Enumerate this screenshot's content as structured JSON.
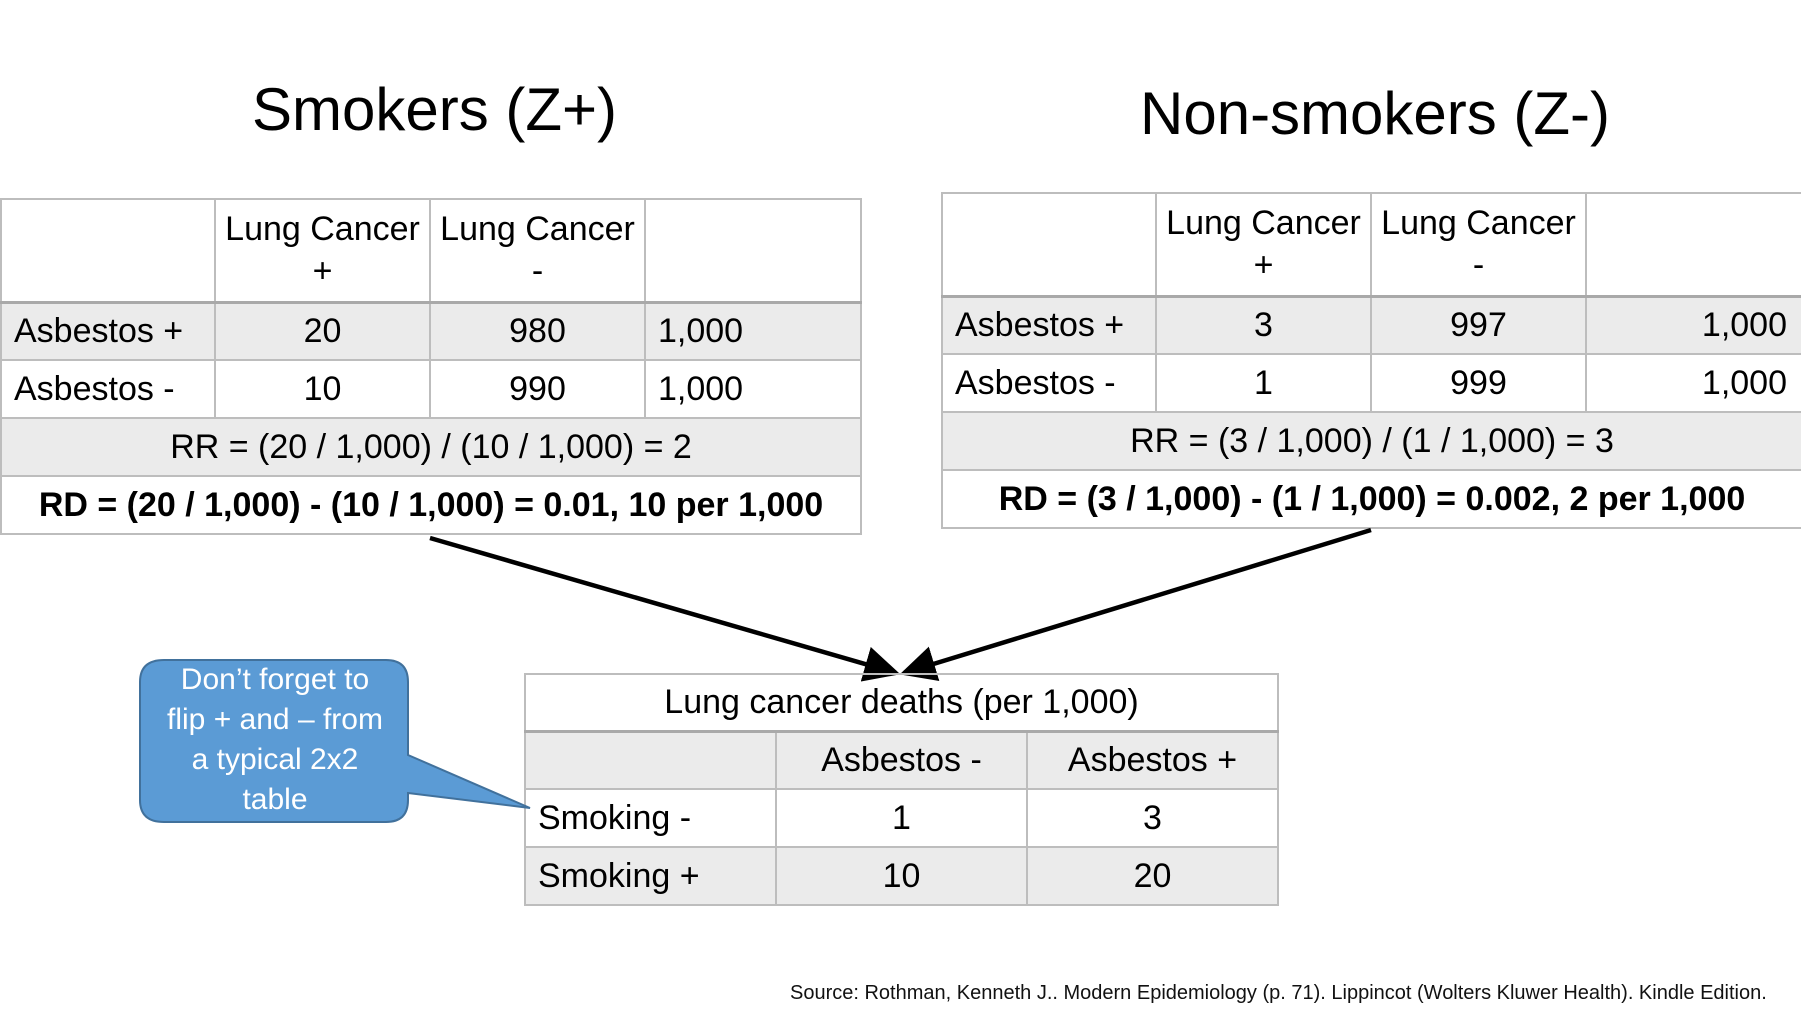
{
  "titles": {
    "left": "Smokers (Z+)",
    "right": "Non-smokers (Z-)"
  },
  "header": {
    "col1_line1": "Lung Cancer",
    "col1_line2": "+",
    "col2_line1": "Lung Cancer",
    "col2_line2": "-"
  },
  "smokers": {
    "rows": [
      {
        "label": "Asbestos +",
        "cancer_pos": "20",
        "cancer_neg": "980",
        "total": "1,000"
      },
      {
        "label": "Asbestos -",
        "cancer_pos": "10",
        "cancer_neg": "990",
        "total": "1,000"
      }
    ],
    "rr": "RR = (20 / 1,000) / (10 / 1,000) = 2",
    "rd": "RD = (20 / 1,000) - (10 / 1,000) = 0.01, 10 per 1,000"
  },
  "nonsmokers": {
    "rows": [
      {
        "label": "Asbestos +",
        "cancer_pos": "3",
        "cancer_neg": "997",
        "total": "1,000"
      },
      {
        "label": "Asbestos -",
        "cancer_pos": "1",
        "cancer_neg": "999",
        "total": "1,000"
      }
    ],
    "rr": "RR = (3 / 1,000) / (1 / 1,000) = 3",
    "rd": "RD = (3 / 1,000) - (1 / 1,000) = 0.002, 2 per 1,000"
  },
  "summary": {
    "title": "Lung cancer deaths (per 1,000)",
    "col_headers": [
      "Asbestos -",
      "Asbestos +"
    ],
    "rows": [
      {
        "label": "Smoking -",
        "values": [
          "1",
          "3"
        ]
      },
      {
        "label": "Smoking +",
        "values": [
          "10",
          "20"
        ]
      }
    ]
  },
  "callout": {
    "lines": [
      "Don’t forget to",
      "flip + and – from",
      "a typical 2x2",
      "table"
    ],
    "fill": "#5b9bd5",
    "stroke": "#41719c"
  },
  "source": "Source: Rothman, Kenneth J.. Modern Epidemiology (p. 71). Lippincot (Wolters Kluwer Health). Kindle Edition."
}
